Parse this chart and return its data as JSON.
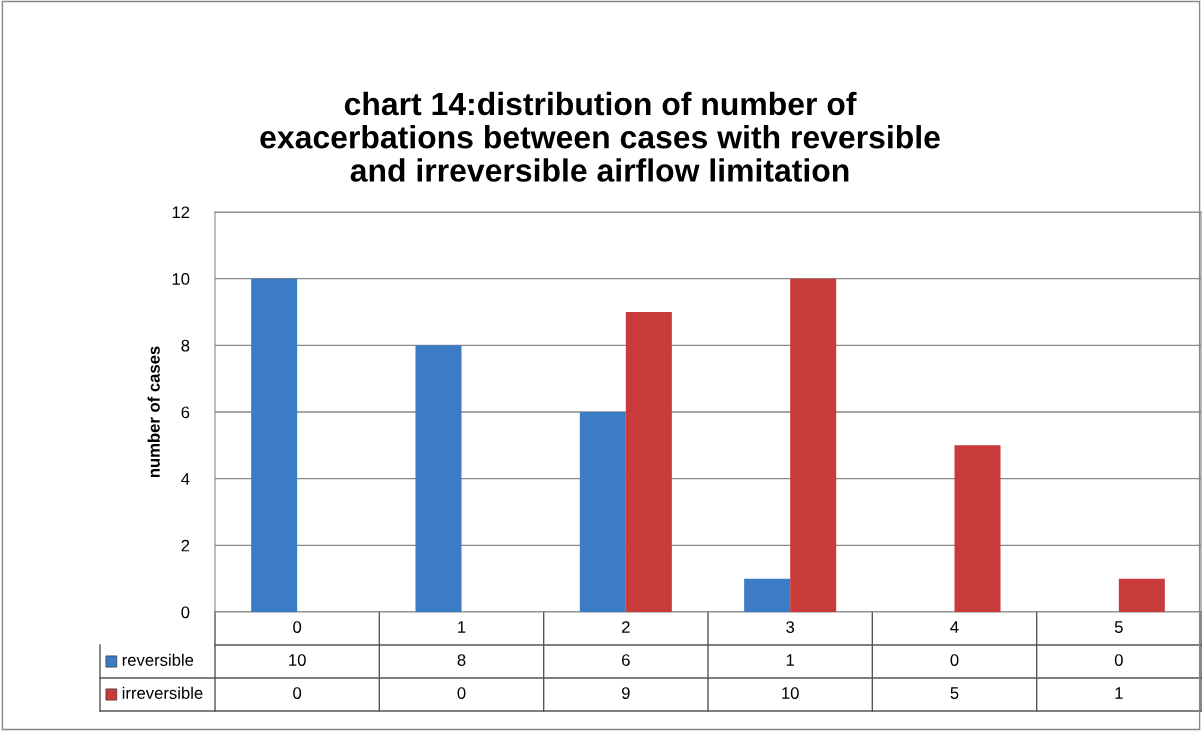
{
  "chart_data": {
    "type": "bar",
    "title": "chart 14:distribution of number of\nexacerbations between cases with reversible\nand irreversible airflow limitation",
    "ylabel": "number of cases",
    "categories": [
      "0",
      "1",
      "2",
      "3",
      "4",
      "5"
    ],
    "series": [
      {
        "name": "reversible",
        "color": "#3c7bc6",
        "values": [
          10,
          8,
          6,
          1,
          0,
          0
        ]
      },
      {
        "name": "irreversible",
        "color": "#c93a3a",
        "values": [
          0,
          0,
          9,
          10,
          5,
          1
        ]
      }
    ],
    "ylim": [
      0,
      12
    ],
    "yticks": [
      0,
      2,
      4,
      6,
      8,
      10,
      12
    ],
    "grid": "y",
    "data_labels": true,
    "legend": "bottom"
  }
}
